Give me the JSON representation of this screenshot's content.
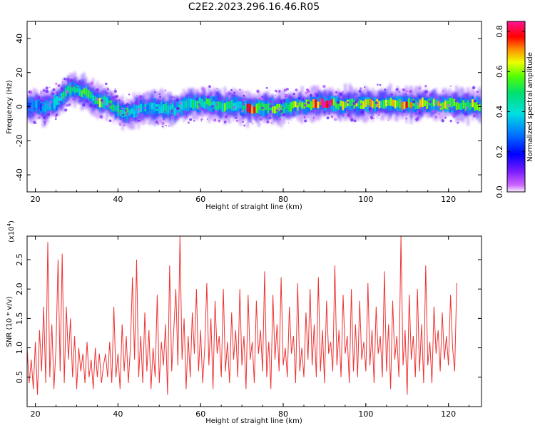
{
  "title": "C2E2.2023.296.16.46.R05",
  "colorbar": {
    "label": "Normalized spectral amplitude",
    "range": [
      0,
      0.85
    ],
    "ticks": [
      "0.0",
      "0.2",
      "0.4",
      "0.6",
      "0.8"
    ],
    "tick_values": [
      0,
      0.2,
      0.4,
      0.6,
      0.8
    ],
    "colormap": "rainbow (magenta-blue-cyan-green-yellow-red-pink)"
  },
  "chart_data": [
    {
      "type": "heatmap",
      "title": "",
      "xlabel": "Height of straight line (km)",
      "ylabel": "Frequency (Hz)",
      "xlim": [
        18,
        128
      ],
      "ylim": [
        -50,
        50
      ],
      "xticks": [
        "20",
        "40",
        "60",
        "80",
        "100",
        "120"
      ],
      "xtick_values": [
        20,
        40,
        60,
        80,
        100,
        120
      ],
      "yticks": [
        "40",
        "20",
        "0",
        "-20",
        "-40"
      ],
      "ytick_values": [
        40,
        20,
        0,
        -20,
        -40
      ],
      "grid": false,
      "ridge": {
        "x": [
          18,
          20,
          22,
          24,
          26,
          28,
          30,
          32,
          34,
          36,
          38,
          40,
          42,
          44,
          46,
          48,
          50,
          52,
          54,
          56,
          58,
          60,
          62,
          64,
          66,
          68,
          70,
          72,
          74,
          76,
          78,
          80,
          82,
          84,
          86,
          88,
          90,
          92,
          94,
          96,
          98,
          100,
          102,
          104,
          106,
          108,
          110,
          112,
          114,
          116,
          118,
          120,
          122,
          124,
          126,
          128
        ],
        "freq": [
          0,
          1,
          0,
          1,
          4,
          10,
          10,
          8,
          5,
          3,
          2,
          -2,
          -4,
          -3,
          -1,
          0,
          -1,
          -1,
          -2,
          1,
          2,
          2,
          2,
          1,
          0,
          1,
          0,
          -1,
          -1,
          0,
          -1,
          -1,
          0,
          1,
          1,
          2,
          2,
          2,
          1,
          2,
          1,
          2,
          2,
          2,
          2,
          1,
          2,
          1,
          2,
          2,
          1,
          2,
          1,
          1,
          1,
          0
        ],
        "amplitude": [
          0.3,
          0.35,
          0.3,
          0.35,
          0.45,
          0.55,
          0.45,
          0.5,
          0.5,
          0.6,
          0.45,
          0.45,
          0.5,
          0.4,
          0.4,
          0.35,
          0.4,
          0.45,
          0.35,
          0.4,
          0.45,
          0.5,
          0.5,
          0.45,
          0.55,
          0.45,
          0.45,
          0.8,
          0.55,
          0.5,
          0.55,
          0.6,
          0.55,
          0.6,
          0.6,
          0.75,
          0.8,
          0.7,
          0.6,
          0.55,
          0.6,
          0.65,
          0.7,
          0.55,
          0.6,
          0.65,
          0.7,
          0.6,
          0.65,
          0.6,
          0.65,
          0.6,
          0.65,
          0.55,
          0.6,
          0.55
        ]
      }
    },
    {
      "type": "line",
      "title": "",
      "xlabel": "Height of straight line (km)",
      "ylabel": "SNR (10 * v/v)",
      "scale_note": "(x10",
      "scale_exp": "4",
      "scale_close": ")",
      "xlim": [
        18,
        128
      ],
      "ylim": [
        0,
        2.9
      ],
      "xticks": [
        "20",
        "40",
        "60",
        "80",
        "100",
        "120"
      ],
      "xtick_values": [
        20,
        40,
        60,
        80,
        100,
        120
      ],
      "yticks": [
        "0.5",
        "1.0",
        "1.5",
        "2.0",
        "2.5"
      ],
      "ytick_values": [
        0.5,
        1.0,
        1.5,
        2.0,
        2.5
      ],
      "grid": false,
      "series": [
        {
          "color": "#ee3333",
          "x_start": 18,
          "x_step": 0.5,
          "values": [
            1.0,
            0.4,
            0.8,
            0.3,
            1.1,
            0.2,
            1.3,
            0.6,
            1.7,
            0.4,
            2.8,
            0.5,
            1.4,
            0.3,
            1.0,
            2.5,
            0.6,
            2.6,
            0.4,
            1.7,
            0.8,
            1.5,
            0.5,
            1.2,
            0.3,
            1.0,
            0.6,
            0.9,
            0.4,
            1.1,
            0.5,
            0.8,
            0.3,
            1.0,
            0.5,
            0.9,
            0.4,
            0.7,
            0.9,
            0.5,
            1.1,
            0.4,
            1.7,
            0.5,
            0.9,
            0.3,
            1.4,
            0.6,
            1.2,
            0.4,
            1.0,
            2.2,
            0.8,
            2.5,
            0.5,
            1.2,
            0.4,
            1.6,
            0.6,
            1.3,
            0.3,
            1.0,
            0.5,
            1.9,
            0.4,
            1.1,
            0.7,
            1.4,
            0.2,
            2.4,
            0.6,
            1.3,
            2.0,
            0.7,
            2.9,
            0.8,
            1.5,
            0.3,
            1.2,
            0.5,
            1.6,
            0.9,
            2.0,
            0.6,
            1.3,
            0.4,
            1.0,
            2.1,
            0.7,
            1.5,
            0.3,
            1.8,
            0.9,
            1.2,
            0.5,
            2.0,
            0.6,
            1.1,
            0.4,
            1.6,
            0.8,
            1.3,
            0.5,
            2.0,
            0.7,
            1.2,
            0.3,
            1.9,
            0.8,
            1.1,
            0.4,
            1.8,
            0.9,
            1.3,
            0.6,
            2.3,
            0.5,
            1.1,
            0.3,
            1.9,
            0.8,
            1.4,
            0.6,
            2.2,
            0.7,
            1.0,
            0.5,
            1.7,
            0.9,
            1.2,
            0.4,
            2.1,
            0.6,
            1.0,
            0.5,
            1.6,
            0.8,
            2.0,
            0.7,
            1.4,
            0.5,
            2.2,
            0.6,
            1.3,
            0.4,
            1.8,
            0.9,
            1.1,
            0.6,
            2.4,
            0.7,
            1.3,
            0.5,
            1.9,
            0.9,
            1.2,
            0.4,
            2.0,
            0.6,
            1.4,
            0.5,
            1.8,
            0.8,
            1.1,
            0.6,
            2.1,
            0.7,
            1.3,
            0.4,
            1.7,
            0.9,
            1.2,
            0.5,
            2.3,
            0.6,
            1.4,
            0.3,
            1.8,
            0.8,
            1.2,
            0.5,
            2.9,
            0.7,
            1.3,
            0.2,
            1.9,
            0.8,
            1.2,
            0.5,
            2.0,
            0.6,
            1.4,
            0.4,
            2.4,
            0.7,
            1.1,
            0.4,
            1.7,
            0.9,
            1.3,
            0.6,
            1.6,
            0.8,
            1.2,
            0.7,
            1.9,
            1.0,
            0.6,
            2.1
          ]
        }
      ]
    }
  ]
}
